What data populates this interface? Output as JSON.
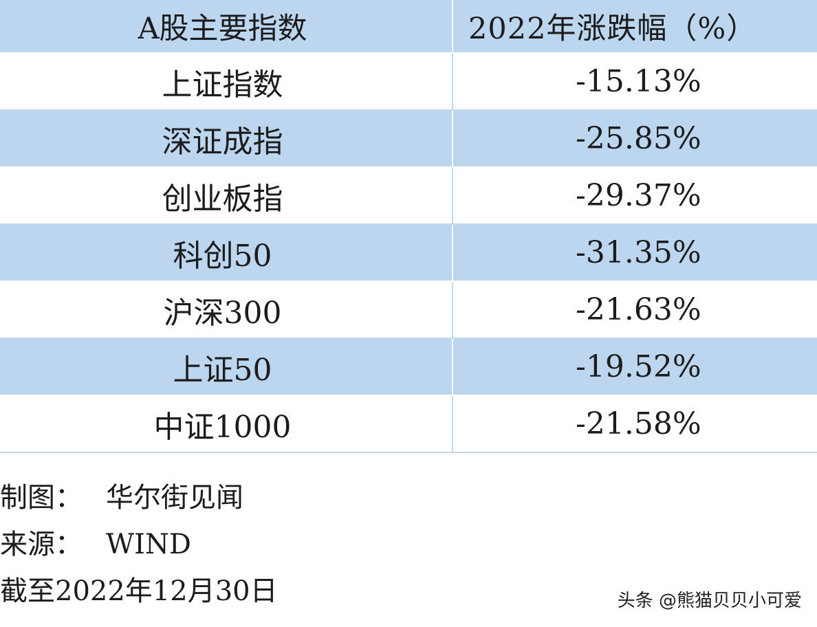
{
  "table": {
    "header": {
      "name": "A股主要指数",
      "change": "2022年涨跌幅（%）"
    },
    "rows": [
      {
        "name": "上证指数",
        "change": "-15.13%"
      },
      {
        "name": "深证成指",
        "change": "-25.85%"
      },
      {
        "name": "创业板指",
        "change": "-29.37%"
      },
      {
        "name": "科创50",
        "change": "-31.35%"
      },
      {
        "name": "沪深300",
        "change": "-21.63%"
      },
      {
        "name": "上证50",
        "change": "-19.52%"
      },
      {
        "name": "中证1000",
        "change": "-21.58%"
      }
    ]
  },
  "notes": {
    "chart_by_label": "制图：",
    "chart_by_value": "华尔街见闻",
    "source_label": "来源：",
    "source_value": "WIND",
    "as_of": "截至2022年12月30日"
  },
  "watermark": "头条 @熊猫贝贝小可爱",
  "colors": {
    "band": "#bcd6ef",
    "rule": "#c6d9ec",
    "text": "#1c1c1c"
  }
}
